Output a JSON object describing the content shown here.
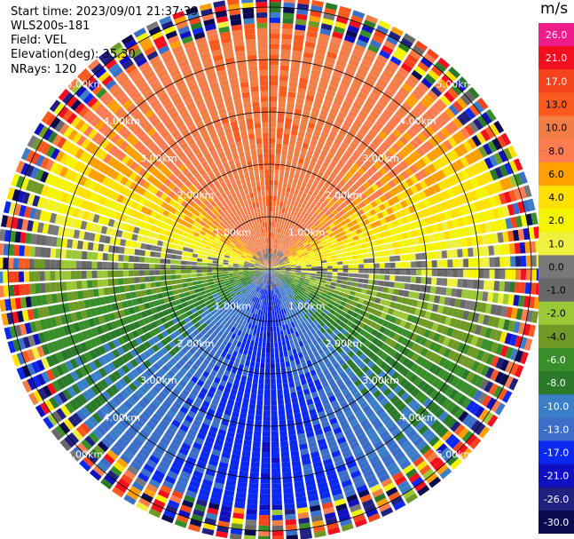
{
  "header": {
    "start_time": "Start time: 2023/09/01 21:37:39",
    "instrument": "WLS200s-181",
    "field": "Field: VEL",
    "elevation": "Elevation(deg): 35.30",
    "nrays": "NRays: 120"
  },
  "chart_data": {
    "type": "heatmap",
    "projection": "polar-ppi",
    "field": "VEL",
    "units": "m/s",
    "nrays": 120,
    "ring_labels": [
      "1.00km",
      "2.00km",
      "3.00km",
      "4.00km",
      "5.00km"
    ],
    "ring_km": [
      1,
      2,
      3,
      4,
      5
    ],
    "colorbar": {
      "unit_label": "m/s",
      "ticks": [
        "26.0",
        "21.0",
        "17.0",
        "13.0",
        "10.0",
        "8.0",
        "6.0",
        "4.0",
        "2.0",
        "1.0",
        "0.0",
        "-1.0",
        "-2.0",
        "-4.0",
        "-6.0",
        "-8.0",
        "-10.0",
        "-13.0",
        "-17.0",
        "-21.0",
        "-26.0",
        "-30.0"
      ],
      "colors": [
        "#f01c8c",
        "#f50f1e",
        "#f3441e",
        "#fa5a1e",
        "#f27e46",
        "#ff7b50",
        "#ffa000",
        "#ffe000",
        "#f5f500",
        "#f0f040",
        "#787878",
        "#686868",
        "#9ac836",
        "#6e9a25",
        "#388e28",
        "#2a7a2a",
        "#3a7ec8",
        "#3a6ec8",
        "#0a28f0",
        "#1010c0",
        "#202080",
        "#0a0a50"
      ]
    },
    "sector_profile": [
      {
        "az": 0,
        "v": 13
      },
      {
        "az": 45,
        "v": 9
      },
      {
        "az": 80,
        "v": 3
      },
      {
        "az": 100,
        "v": -1
      },
      {
        "az": 135,
        "v": -8
      },
      {
        "az": 180,
        "v": -16
      },
      {
        "az": 225,
        "v": -10
      },
      {
        "az": 260,
        "v": -4
      },
      {
        "az": 280,
        "v": 1
      },
      {
        "az": 315,
        "v": 9
      },
      {
        "az": 360,
        "v": 13
      }
    ],
    "valid_range_km": 4.6,
    "max_range_km": 5.6
  }
}
